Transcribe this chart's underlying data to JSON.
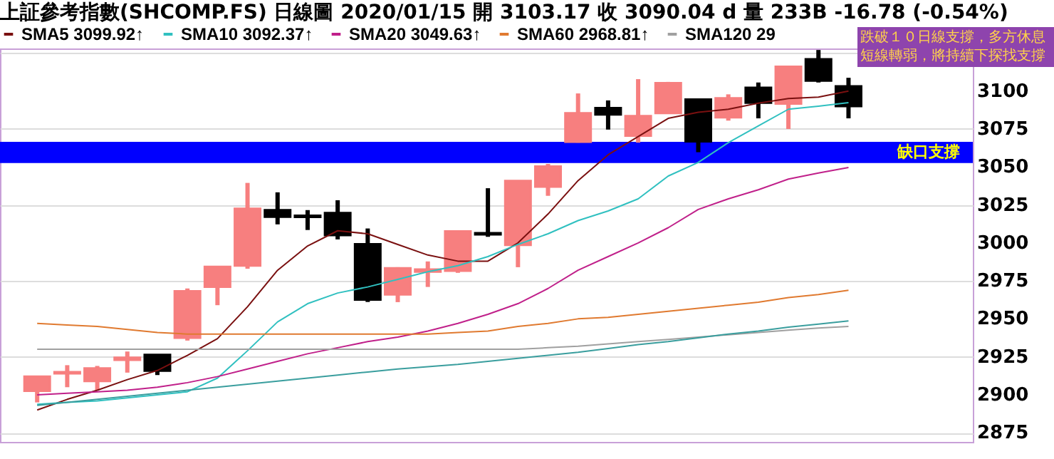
{
  "chart_data": {
    "type": "candlestick",
    "title": "上証參考指數(SHCOMP.FS)   日線圖   2020/01/15   開 3103.17   收 3090.04 d   量 233B   -16.78 (-0.54%)",
    "categories": [
      null,
      null,
      null,
      null,
      null,
      null,
      null,
      null,
      null,
      null,
      null,
      null,
      null,
      null,
      null,
      null,
      null,
      null,
      null,
      null,
      null,
      null,
      null,
      null,
      null,
      null,
      null,
      null
    ],
    "ohlc": [
      [
        2902.5,
        2912,
        2895,
        2912
      ],
      [
        2914,
        2919.5,
        2905,
        2915
      ],
      [
        2909,
        2919,
        2903,
        2917.4
      ],
      [
        2923,
        2928.5,
        2914.6,
        2924.5
      ],
      [
        2926.4,
        2926.4,
        2913,
        2915.8
      ],
      [
        2937.5,
        2970,
        2935.7,
        2968.2
      ],
      [
        2971,
        2984.3,
        2959,
        2984.3
      ],
      [
        2985,
        3039.5,
        2983,
        3022.5
      ],
      [
        3021.6,
        3033.3,
        3012.2,
        3017.2
      ],
      [
        3018,
        3021.6,
        3008.5,
        3017
      ],
      [
        3019.7,
        3028.1,
        3002.3,
        3005.1
      ],
      [
        2999.2,
        3009.5,
        2961.1,
        2962.6
      ],
      [
        2966,
        2984,
        2961,
        2983.4
      ],
      [
        2981,
        2987.8,
        2971,
        2982.5
      ],
      [
        2981.6,
        3008,
        2980.3,
        3007.6
      ],
      [
        3006.5,
        3036,
        3004,
        3005.5
      ],
      [
        2998.6,
        3041,
        2984,
        3040.8
      ],
      [
        3037,
        3052,
        3031,
        3050.4
      ],
      [
        3066.5,
        3098.4,
        3066,
        3085.4
      ],
      [
        3088.8,
        3093.8,
        3074.6,
        3084.5
      ],
      [
        3070.5,
        3107.8,
        3066,
        3083.6
      ],
      [
        3085.4,
        3106,
        3085,
        3105.3
      ],
      [
        3094.4,
        3094.4,
        3059.7,
        3066.8
      ],
      [
        3082.6,
        3097.8,
        3080.5,
        3095.3
      ],
      [
        3102.2,
        3105.6,
        3082,
        3092.2
      ],
      [
        3091.6,
        3116,
        3075,
        3116
      ],
      [
        3121,
        3127,
        3105.6,
        3106.8
      ],
      [
        3103.17,
        3108.7,
        3082,
        3090.04
      ]
    ],
    "colors": [
      "#f77f7f",
      "#f77f7f",
      "#f77f7f",
      "#f77f7f",
      "#000000",
      "#f77f7f",
      "#f77f7f",
      "#f77f7f",
      "#000000",
      "#000000",
      "#000000",
      "#000000",
      "#f77f7f",
      "#f77f7f",
      "#f77f7f",
      "#000000",
      "#f77f7f",
      "#f77f7f",
      "#f77f7f",
      "#000000",
      "#f77f7f",
      "#f77f7f",
      "#000000",
      "#f77f7f",
      "#000000",
      "#f77f7f",
      "#000000",
      "#000000"
    ],
    "series": [
      {
        "type": "line",
        "name": "SMA5 3099.92↑",
        "color": "#7a1010",
        "values": [
          2890,
          2897,
          2903,
          2910,
          2916,
          2926,
          2937,
          2958,
          2982,
          2998,
          3008,
          3006,
          2999,
          2992,
          2988,
          2988,
          3000,
          3019,
          3041,
          3058,
          3070,
          3082,
          3086,
          3088,
          3092,
          3095,
          3096,
          3099.92
        ]
      },
      {
        "type": "line",
        "name": "SMA10 3092.37↑",
        "color": "#30c0c0",
        "values": [
          2893.8,
          2895,
          2896,
          2898,
          2900,
          2902,
          2911,
          2929,
          2948,
          2960,
          2967,
          2971,
          2976,
          2981,
          2985,
          2991,
          2999,
          3006,
          3014.7,
          3021,
          3029,
          3044,
          3053,
          3066,
          3077,
          3088,
          3090,
          3092.37
        ]
      },
      {
        "type": "line",
        "name": "SMA20 3049.63↑",
        "color": "#c0208a",
        "values": [
          2900,
          2901,
          2902,
          2903,
          2905,
          2908,
          2912,
          2917,
          2922,
          2927,
          2931,
          2935,
          2938,
          2942,
          2947,
          2953,
          2960,
          2970,
          2982,
          2991,
          3000,
          3010,
          3022,
          3029,
          3035,
          3042,
          3046,
          3049.63
        ]
      },
      {
        "type": "line",
        "name": "SMA60 2968.81↑",
        "color": "#e07a30",
        "values": [
          2947,
          2946,
          2945,
          2943,
          2941,
          2940,
          2940,
          2940,
          2940,
          2940,
          2940,
          2940,
          2940,
          2940,
          2941,
          2942,
          2945,
          2947,
          2950,
          2951,
          2953,
          2955,
          2957,
          2959,
          2961,
          2964,
          2966,
          2968.81
        ]
      },
      {
        "type": "line",
        "name": "SMA120 29",
        "color": "#a0a0a0",
        "values": [
          2930,
          2930,
          2930,
          2930,
          2930,
          2930,
          2930,
          2930,
          2930,
          2930,
          2930,
          2930,
          2930,
          2930,
          2930,
          2930,
          2930,
          2931,
          2932,
          2933.5,
          2935,
          2936.5,
          2938,
          2939.5,
          2941,
          2942.5,
          2944,
          2945
        ]
      },
      {
        "type": "line",
        "color": "#3a9e9e",
        "values": [
          2893,
          2895,
          2897,
          2899,
          2901,
          2903,
          2905,
          2907,
          2909,
          2911,
          2913,
          2915,
          2917,
          2918.5,
          2920,
          2922,
          2924,
          2926,
          2928,
          2930.5,
          2933,
          2935,
          2937.5,
          2940,
          2942,
          2944.5,
          2946.5,
          2948.7
        ]
      }
    ],
    "ylim": [
      2869,
      3128
    ],
    "yticks": [
      2875,
      2900,
      2925,
      2950,
      2975,
      3000,
      3025,
      3050,
      3075,
      3100,
      {
        "value": 3125,
        "label": null
      }
    ],
    "grid": "y",
    "legend": "top left",
    "tick_labels": "y",
    "bands": [
      {
        "axis": "y",
        "from": 3052.6,
        "to": 3066.5,
        "label": "缺口支撐",
        "color": "#0000ff"
      }
    ],
    "annotations": [
      "跌破１０日線支撐，多方休息",
      "短線轉弱，將持續下探找支撐"
    ]
  }
}
